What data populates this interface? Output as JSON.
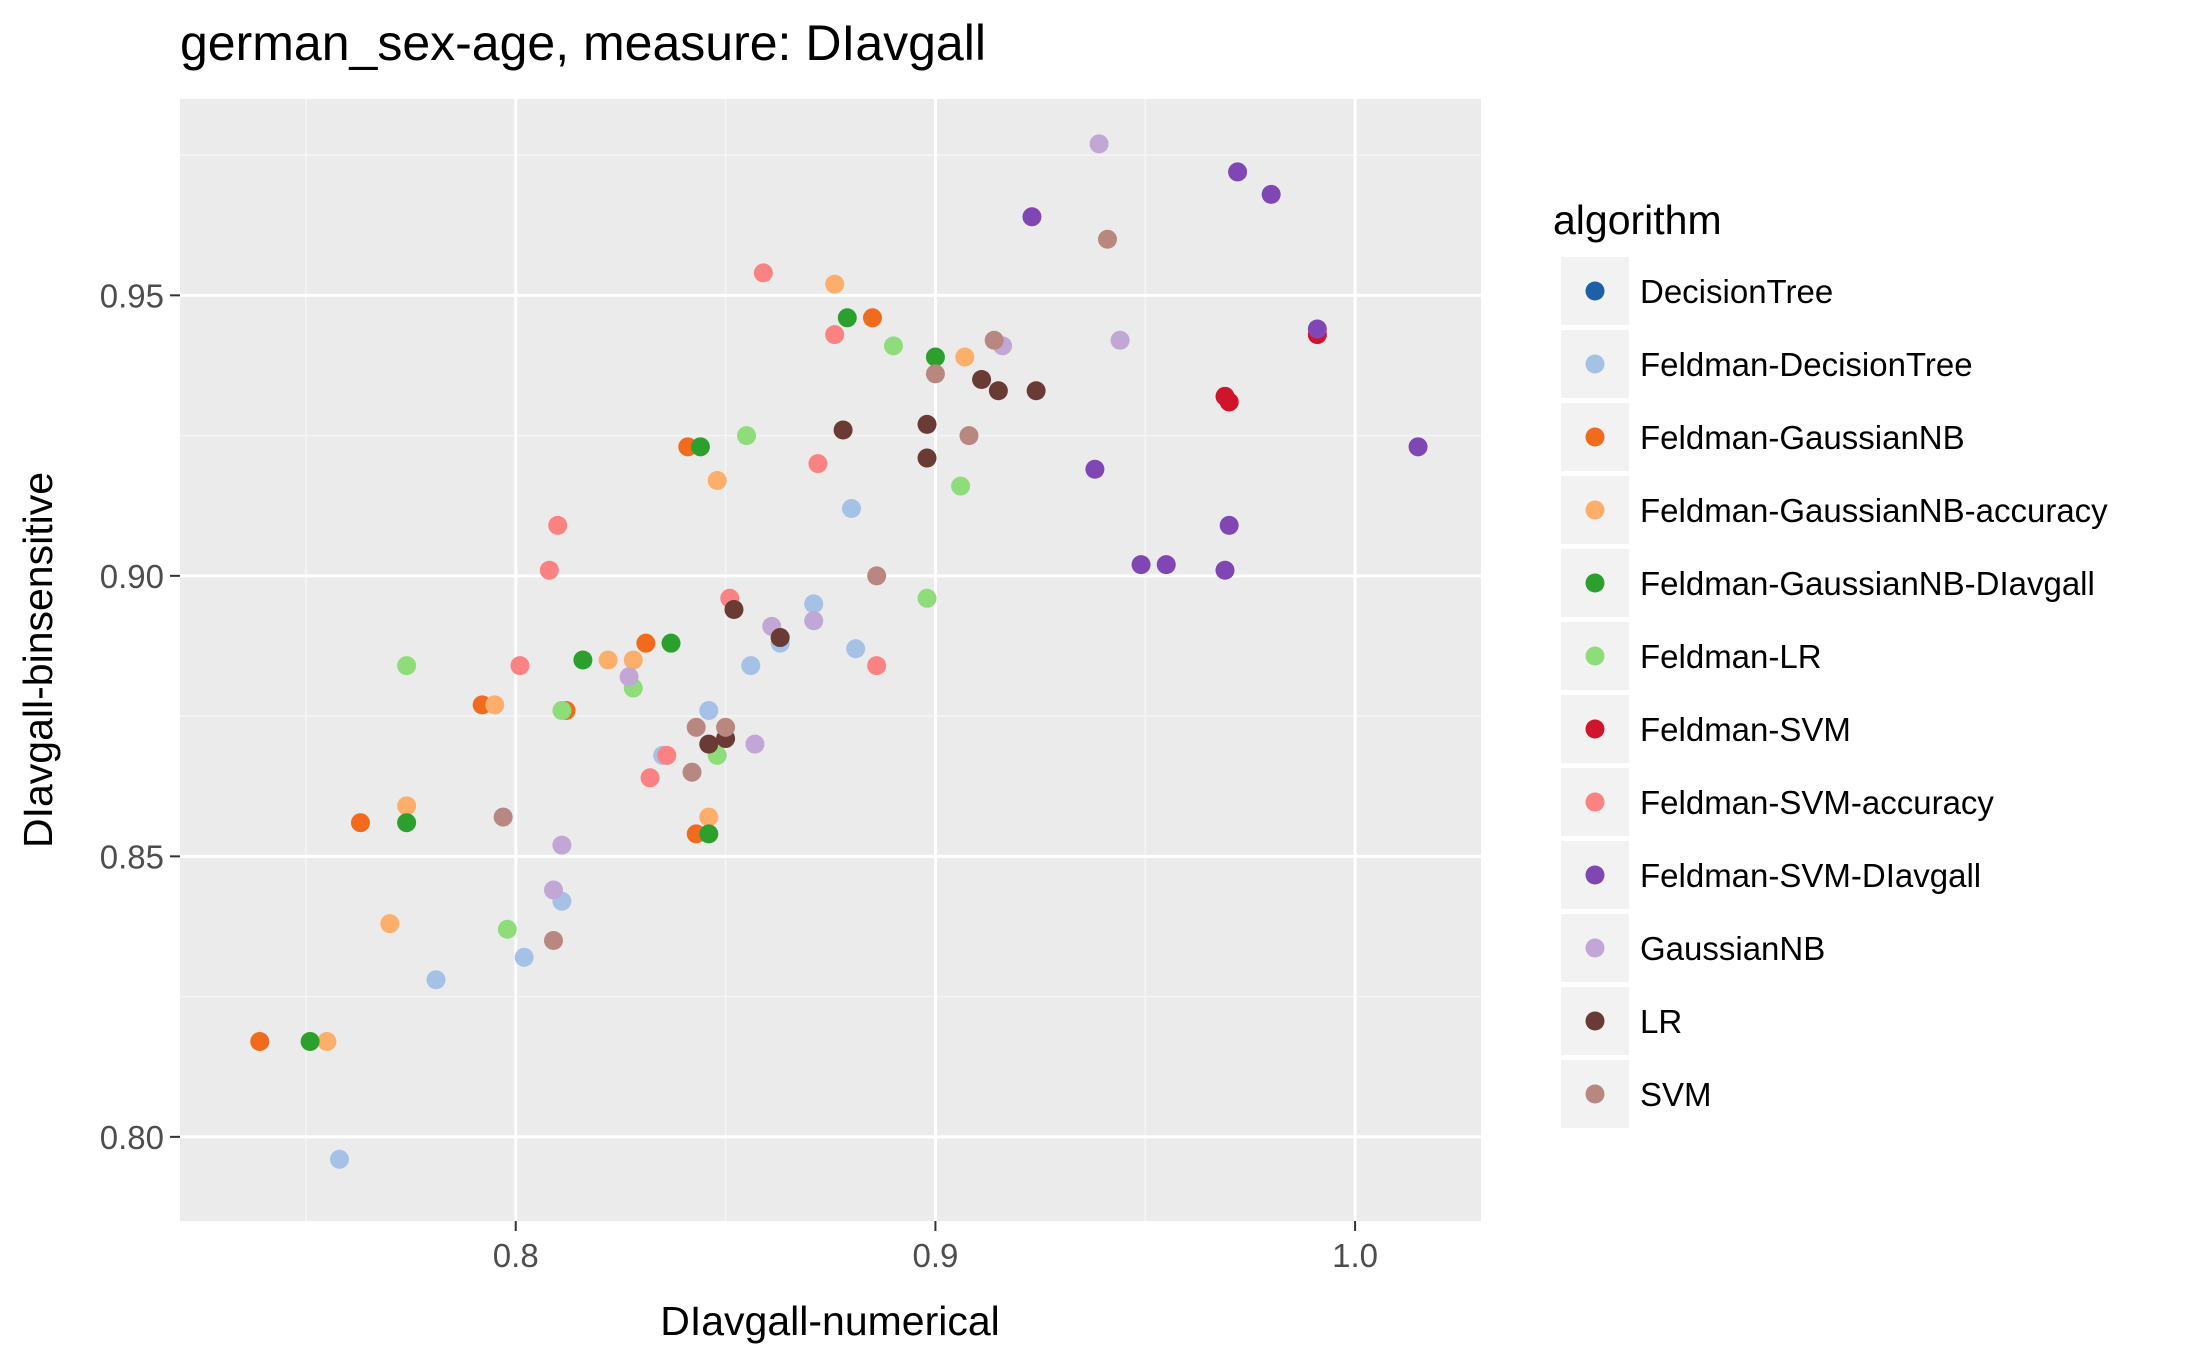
{
  "chart_data": {
    "type": "scatter",
    "title": "german_sex-age, measure: DIavgall",
    "xlabel": "DIavgall-numerical",
    "ylabel": "DIavgall-binsensitive",
    "xlim": [
      0.72,
      1.03
    ],
    "ylim": [
      0.785,
      0.985
    ],
    "xticks": [
      0.8,
      0.9,
      1.0
    ],
    "xtick_labels": [
      "0.8",
      "0.9",
      "1.0"
    ],
    "yticks": [
      0.8,
      0.85,
      0.9,
      0.95
    ],
    "ytick_labels": [
      "0.80",
      "0.85",
      "0.90",
      "0.95"
    ],
    "grid": true,
    "legend_title": "algorithm",
    "legend_position": "right",
    "series": [
      {
        "name": "DecisionTree",
        "color": "#1f5fa8",
        "points": []
      },
      {
        "name": "Feldman-DecisionTree",
        "color": "#a6c1e6",
        "points": [
          [
            0.758,
            0.796
          ],
          [
            0.781,
            0.828
          ],
          [
            0.802,
            0.832
          ],
          [
            0.811,
            0.842
          ],
          [
            0.835,
            0.868
          ],
          [
            0.846,
            0.876
          ],
          [
            0.856,
            0.884
          ],
          [
            0.863,
            0.888
          ],
          [
            0.871,
            0.895
          ],
          [
            0.881,
            0.887
          ],
          [
            0.88,
            0.912
          ]
        ]
      },
      {
        "name": "Feldman-GaussianNB",
        "color": "#f26b1d",
        "points": [
          [
            0.739,
            0.817
          ],
          [
            0.763,
            0.856
          ],
          [
            0.792,
            0.877
          ],
          [
            0.812,
            0.876
          ],
          [
            0.831,
            0.888
          ],
          [
            0.841,
            0.923
          ],
          [
            0.843,
            0.854
          ],
          [
            0.885,
            0.946
          ]
        ]
      },
      {
        "name": "Feldman-GaussianNB-accuracy",
        "color": "#fdae6b",
        "points": [
          [
            0.755,
            0.817
          ],
          [
            0.77,
            0.838
          ],
          [
            0.774,
            0.859
          ],
          [
            0.795,
            0.877
          ],
          [
            0.822,
            0.885
          ],
          [
            0.828,
            0.885
          ],
          [
            0.846,
            0.857
          ],
          [
            0.848,
            0.917
          ],
          [
            0.876,
            0.952
          ],
          [
            0.907,
            0.939
          ]
        ]
      },
      {
        "name": "Feldman-GaussianNB-DIavgall",
        "color": "#2ca02c",
        "points": [
          [
            0.751,
            0.817
          ],
          [
            0.774,
            0.856
          ],
          [
            0.816,
            0.885
          ],
          [
            0.837,
            0.888
          ],
          [
            0.844,
            0.923
          ],
          [
            0.846,
            0.854
          ],
          [
            0.879,
            0.946
          ],
          [
            0.9,
            0.939
          ]
        ]
      },
      {
        "name": "Feldman-LR",
        "color": "#8fdc7a",
        "points": [
          [
            0.774,
            0.884
          ],
          [
            0.798,
            0.837
          ],
          [
            0.811,
            0.876
          ],
          [
            0.828,
            0.88
          ],
          [
            0.848,
            0.868
          ],
          [
            0.855,
            0.925
          ],
          [
            0.863,
            0.889
          ],
          [
            0.89,
            0.941
          ],
          [
            0.898,
            0.896
          ],
          [
            0.906,
            0.916
          ]
        ]
      },
      {
        "name": "Feldman-SVM",
        "color": "#d0142a",
        "points": [
          [
            0.969,
            0.932
          ],
          [
            0.97,
            0.931
          ],
          [
            0.991,
            0.943
          ]
        ]
      },
      {
        "name": "Feldman-SVM-accuracy",
        "color": "#fa8282",
        "points": [
          [
            0.801,
            0.884
          ],
          [
            0.808,
            0.901
          ],
          [
            0.81,
            0.909
          ],
          [
            0.832,
            0.864
          ],
          [
            0.836,
            0.868
          ],
          [
            0.851,
            0.896
          ],
          [
            0.859,
            0.954
          ],
          [
            0.872,
            0.92
          ],
          [
            0.876,
            0.943
          ],
          [
            0.886,
            0.884
          ]
        ]
      },
      {
        "name": "Feldman-SVM-DIavgall",
        "color": "#8046b3",
        "points": [
          [
            0.923,
            0.964
          ],
          [
            0.938,
            0.919
          ],
          [
            0.949,
            0.902
          ],
          [
            0.955,
            0.902
          ],
          [
            0.969,
            0.901
          ],
          [
            0.97,
            0.909
          ],
          [
            0.972,
            0.972
          ],
          [
            0.98,
            0.968
          ],
          [
            0.991,
            0.944
          ],
          [
            1.015,
            0.923
          ]
        ]
      },
      {
        "name": "GaussianNB",
        "color": "#c1a6d6",
        "points": [
          [
            0.809,
            0.844
          ],
          [
            0.811,
            0.852
          ],
          [
            0.827,
            0.882
          ],
          [
            0.857,
            0.87
          ],
          [
            0.861,
            0.891
          ],
          [
            0.871,
            0.892
          ],
          [
            0.916,
            0.941
          ],
          [
            0.939,
            0.977
          ],
          [
            0.944,
            0.942
          ]
        ]
      },
      {
        "name": "LR",
        "color": "#6a3a34",
        "points": [
          [
            0.846,
            0.87
          ],
          [
            0.85,
            0.871
          ],
          [
            0.852,
            0.894
          ],
          [
            0.863,
            0.889
          ],
          [
            0.878,
            0.926
          ],
          [
            0.898,
            0.921
          ],
          [
            0.898,
            0.927
          ],
          [
            0.911,
            0.935
          ],
          [
            0.915,
            0.933
          ],
          [
            0.924,
            0.933
          ]
        ]
      },
      {
        "name": "SVM",
        "color": "#b88880",
        "points": [
          [
            0.797,
            0.857
          ],
          [
            0.809,
            0.835
          ],
          [
            0.842,
            0.865
          ],
          [
            0.843,
            0.873
          ],
          [
            0.85,
            0.873
          ],
          [
            0.886,
            0.9
          ],
          [
            0.9,
            0.936
          ],
          [
            0.908,
            0.925
          ],
          [
            0.914,
            0.942
          ],
          [
            0.941,
            0.96
          ]
        ]
      }
    ]
  }
}
